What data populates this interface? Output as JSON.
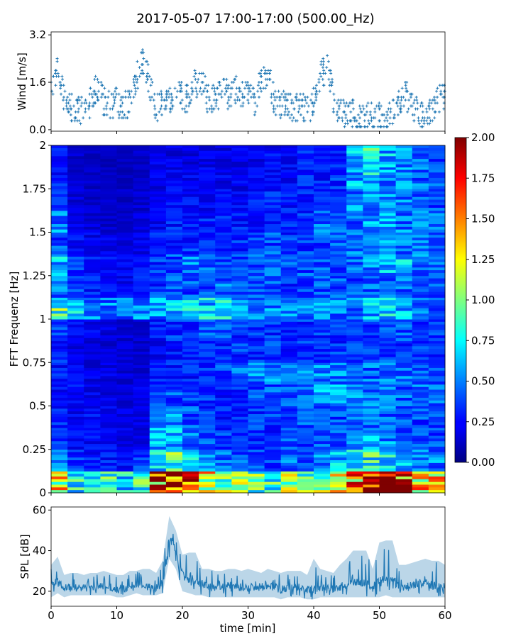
{
  "chart_data": [
    {
      "type": "scatter",
      "title": "2017-05-07 17:00-17:00 (500.00_Hz)",
      "ylabel": "Wind [m/s]",
      "xlim": [
        0,
        60
      ],
      "ylim": [
        -0.05,
        3.3
      ],
      "yticks": [
        "0.0",
        "1.6",
        "3.2"
      ],
      "marker": "+",
      "color": "#1f77b4",
      "x": [
        0,
        1,
        2,
        3,
        4,
        5,
        6,
        7,
        8,
        9,
        10,
        11,
        12,
        13,
        14,
        15,
        16,
        17,
        18,
        19,
        20,
        21,
        22,
        23,
        24,
        25,
        26,
        27,
        28,
        29,
        30,
        31,
        32,
        33,
        34,
        35,
        36,
        37,
        38,
        39,
        40,
        41,
        42,
        43,
        44,
        45,
        46,
        47,
        48,
        49,
        50,
        51,
        52,
        53,
        54,
        55,
        56,
        57,
        58,
        59,
        60
      ],
      "y": [
        1.2,
        2.2,
        1.0,
        0.8,
        0.6,
        0.7,
        0.9,
        1.5,
        1.0,
        0.8,
        0.9,
        0.8,
        1.0,
        1.8,
        2.4,
        1.5,
        0.8,
        0.9,
        1.0,
        1.3,
        1.2,
        1.0,
        1.6,
        1.6,
        1.0,
        1.2,
        1.3,
        1.2,
        1.3,
        1.2,
        1.4,
        1.0,
        1.6,
        2.0,
        1.0,
        0.9,
        0.8,
        0.7,
        0.8,
        0.7,
        0.9,
        1.8,
        2.2,
        1.0,
        0.6,
        0.5,
        0.5,
        0.3,
        0.4,
        0.5,
        0.4,
        0.3,
        0.6,
        0.9,
        1.2,
        0.8,
        0.5,
        0.4,
        0.6,
        1.0,
        1.1
      ]
    },
    {
      "type": "heatmap",
      "ylabel": "FFT Frequenz [Hz]",
      "xlim": [
        0,
        60
      ],
      "ylim": [
        0,
        2
      ],
      "yticks": [
        "0",
        "0.25",
        "0.5",
        "0.75",
        "1",
        "1.25",
        "1.5",
        "1.75",
        "2"
      ],
      "colormap": "jet",
      "colorbar": {
        "range": [
          0,
          2
        ],
        "ticks": [
          "0.00",
          "0.25",
          "0.50",
          "0.75",
          "1.00",
          "1.25",
          "1.50",
          "1.75",
          "2.00"
        ]
      },
      "time_bins_min": [
        0,
        2.5,
        5,
        7.5,
        10,
        12.5,
        15,
        17.5,
        20,
        22.5,
        25,
        27.5,
        30,
        32.5,
        35,
        37.5,
        40,
        42.5,
        45,
        47.5,
        50,
        52.5,
        55,
        57.5
      ],
      "freq_bins_hz": [
        0,
        0.125,
        0.25,
        0.375,
        0.5,
        0.625,
        0.75,
        0.875,
        1.0,
        1.125,
        1.25,
        1.375,
        1.5,
        1.625,
        1.75,
        1.875
      ],
      "values": [
        [
          1.2,
          0.8,
          0.8,
          0.8,
          0.7,
          0.8,
          1.6,
          1.9,
          1.7,
          1.2,
          1.0,
          1.0,
          0.9,
          0.9,
          1.0,
          1.0,
          1.1,
          1.2,
          1.5,
          1.9,
          2.0,
          1.8,
          1.4,
          1.2
        ],
        [
          0.5,
          0.35,
          0.3,
          0.3,
          0.3,
          0.35,
          0.7,
          0.9,
          0.7,
          0.5,
          0.45,
          0.4,
          0.4,
          0.4,
          0.45,
          0.45,
          0.5,
          0.6,
          0.8,
          0.8,
          0.75,
          0.6,
          0.5,
          0.5
        ],
        [
          0.35,
          0.25,
          0.25,
          0.25,
          0.2,
          0.2,
          0.55,
          0.6,
          0.5,
          0.4,
          0.35,
          0.35,
          0.35,
          0.35,
          0.4,
          0.4,
          0.4,
          0.45,
          0.5,
          0.55,
          0.5,
          0.45,
          0.45,
          0.4
        ],
        [
          0.3,
          0.25,
          0.25,
          0.22,
          0.2,
          0.2,
          0.4,
          0.5,
          0.4,
          0.35,
          0.3,
          0.3,
          0.35,
          0.35,
          0.35,
          0.4,
          0.4,
          0.4,
          0.45,
          0.45,
          0.45,
          0.4,
          0.4,
          0.4
        ],
        [
          0.3,
          0.25,
          0.22,
          0.2,
          0.2,
          0.2,
          0.35,
          0.4,
          0.35,
          0.35,
          0.3,
          0.35,
          0.4,
          0.4,
          0.45,
          0.5,
          0.55,
          0.6,
          0.55,
          0.5,
          0.45,
          0.45,
          0.45,
          0.45
        ],
        [
          0.3,
          0.22,
          0.2,
          0.2,
          0.18,
          0.18,
          0.3,
          0.3,
          0.3,
          0.35,
          0.4,
          0.45,
          0.5,
          0.5,
          0.5,
          0.5,
          0.5,
          0.5,
          0.45,
          0.45,
          0.5,
          0.45,
          0.4,
          0.4
        ],
        [
          0.3,
          0.22,
          0.2,
          0.18,
          0.16,
          0.15,
          0.25,
          0.3,
          0.3,
          0.3,
          0.35,
          0.35,
          0.35,
          0.35,
          0.35,
          0.35,
          0.35,
          0.35,
          0.35,
          0.35,
          0.4,
          0.35,
          0.35,
          0.35
        ],
        [
          0.35,
          0.25,
          0.22,
          0.2,
          0.18,
          0.18,
          0.3,
          0.35,
          0.35,
          0.4,
          0.4,
          0.35,
          0.35,
          0.35,
          0.35,
          0.35,
          0.35,
          0.35,
          0.35,
          0.4,
          0.4,
          0.4,
          0.35,
          0.35
        ],
        [
          0.9,
          0.7,
          0.55,
          0.5,
          0.45,
          0.5,
          0.55,
          0.6,
          0.65,
          0.65,
          0.65,
          0.6,
          0.55,
          0.55,
          0.5,
          0.5,
          0.55,
          0.5,
          0.5,
          0.6,
          0.65,
          0.6,
          0.5,
          0.45
        ],
        [
          0.45,
          0.35,
          0.3,
          0.25,
          0.25,
          0.3,
          0.35,
          0.4,
          0.4,
          0.4,
          0.45,
          0.4,
          0.4,
          0.4,
          0.35,
          0.4,
          0.4,
          0.4,
          0.4,
          0.45,
          0.45,
          0.45,
          0.4,
          0.4
        ],
        [
          0.6,
          0.35,
          0.3,
          0.25,
          0.22,
          0.25,
          0.35,
          0.4,
          0.5,
          0.45,
          0.4,
          0.4,
          0.45,
          0.5,
          0.4,
          0.4,
          0.4,
          0.4,
          0.45,
          0.5,
          0.6,
          0.6,
          0.5,
          0.45
        ],
        [
          0.4,
          0.25,
          0.22,
          0.2,
          0.18,
          0.2,
          0.3,
          0.35,
          0.35,
          0.35,
          0.35,
          0.35,
          0.35,
          0.4,
          0.35,
          0.35,
          0.4,
          0.4,
          0.45,
          0.5,
          0.5,
          0.45,
          0.45,
          0.4
        ],
        [
          0.5,
          0.2,
          0.18,
          0.16,
          0.15,
          0.18,
          0.25,
          0.3,
          0.3,
          0.3,
          0.3,
          0.3,
          0.3,
          0.35,
          0.35,
          0.35,
          0.45,
          0.4,
          0.45,
          0.55,
          0.55,
          0.5,
          0.5,
          0.45
        ],
        [
          0.35,
          0.18,
          0.15,
          0.14,
          0.14,
          0.16,
          0.22,
          0.25,
          0.25,
          0.25,
          0.25,
          0.25,
          0.3,
          0.3,
          0.3,
          0.3,
          0.35,
          0.35,
          0.5,
          0.55,
          0.5,
          0.5,
          0.45,
          0.4
        ],
        [
          0.3,
          0.16,
          0.14,
          0.13,
          0.13,
          0.15,
          0.2,
          0.22,
          0.22,
          0.22,
          0.22,
          0.22,
          0.25,
          0.25,
          0.25,
          0.3,
          0.3,
          0.35,
          0.6,
          0.65,
          0.55,
          0.5,
          0.45,
          0.4
        ],
        [
          0.3,
          0.15,
          0.13,
          0.12,
          0.12,
          0.14,
          0.2,
          0.2,
          0.2,
          0.2,
          0.2,
          0.22,
          0.22,
          0.25,
          0.25,
          0.3,
          0.3,
          0.35,
          0.6,
          0.75,
          0.6,
          0.5,
          0.45,
          0.4
        ]
      ]
    },
    {
      "type": "area",
      "ylabel": "SPL [dB]",
      "xlabel": "time [min]",
      "xlim": [
        0,
        60
      ],
      "ylim": [
        12.6,
        61.5
      ],
      "xticks": [
        "0",
        "10",
        "20",
        "30",
        "40",
        "50",
        "60"
      ],
      "yticks": [
        "20",
        "40",
        "60"
      ],
      "color": "#1f77b4",
      "x": [
        0,
        1,
        2,
        3,
        4,
        5,
        6,
        7,
        8,
        9,
        10,
        11,
        12,
        13,
        14,
        15,
        16,
        17,
        18,
        19,
        20,
        21,
        22,
        23,
        24,
        25,
        26,
        27,
        28,
        29,
        30,
        31,
        32,
        33,
        34,
        35,
        36,
        37,
        38,
        39,
        40,
        41,
        42,
        43,
        44,
        45,
        46,
        47,
        48,
        49,
        50,
        51,
        52,
        53,
        54,
        55,
        56,
        57,
        58,
        59,
        60
      ],
      "mean": [
        23,
        25,
        22,
        22,
        22,
        22,
        22,
        22,
        22,
        22,
        21,
        21,
        22,
        24,
        23,
        22,
        22,
        24,
        46,
        40,
        28,
        25,
        24,
        24,
        22,
        22,
        22,
        23,
        22,
        22,
        22,
        22,
        22,
        23,
        22,
        21,
        22,
        22,
        22,
        21,
        21,
        22,
        22,
        21,
        22,
        23,
        25,
        24,
        24,
        22,
        25,
        26,
        26,
        23,
        22,
        23,
        24,
        24,
        23,
        22,
        22
      ],
      "upper": [
        33,
        37,
        28,
        29,
        29,
        28,
        29,
        29,
        30,
        29,
        28,
        28,
        30,
        30,
        31,
        31,
        29,
        35,
        57,
        50,
        38,
        39,
        39,
        31,
        31,
        30,
        30,
        31,
        31,
        30,
        31,
        30,
        29,
        31,
        30,
        29,
        30,
        30,
        30,
        28,
        36,
        31,
        30,
        29,
        33,
        36,
        40,
        40,
        40,
        31,
        44,
        45,
        45,
        33,
        33,
        34,
        35,
        36,
        35,
        35,
        33
      ],
      "lower": [
        17,
        19,
        17,
        18,
        18,
        18,
        18,
        18,
        18,
        18,
        17,
        17,
        18,
        19,
        18,
        18,
        18,
        19,
        36,
        31,
        20,
        19,
        18,
        18,
        17,
        17,
        17,
        17,
        17,
        17,
        17,
        17,
        17,
        17,
        17,
        16,
        17,
        17,
        17,
        16,
        16,
        17,
        17,
        17,
        17,
        17,
        17,
        17,
        17,
        17,
        17,
        18,
        17,
        17,
        17,
        17,
        17,
        17,
        17,
        17,
        17
      ]
    }
  ]
}
